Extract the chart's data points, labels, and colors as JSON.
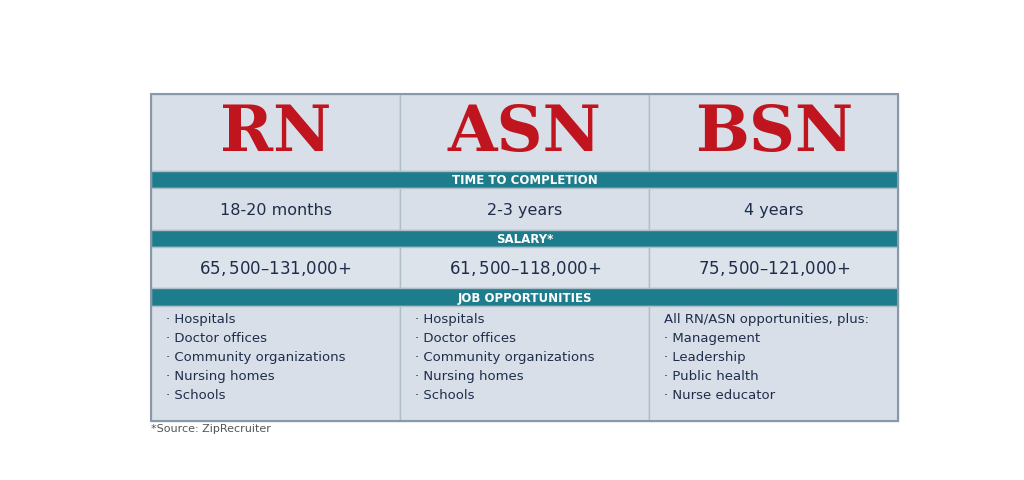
{
  "columns": [
    "RN",
    "ASN",
    "BSN"
  ],
  "header_color": "#c0151e",
  "header_bg": "#d8dfe8",
  "section_header_bg": "#1e7d8c",
  "section_header_text_color": "#ffffff",
  "cell_bg_light": "#dce3eb",
  "cell_bg_alt": "#ccd4de",
  "border_color": "#b0bec8",
  "section_headers": [
    "TIME TO COMPLETION",
    "SALARY*",
    "JOB OPPORTUNITIES"
  ],
  "time_to_completion": [
    "18-20 months",
    "2-3 years",
    "4 years"
  ],
  "salary": [
    "$65,500–$131,000+",
    "$61,500–$118,000+",
    "$75,500–$121,000+"
  ],
  "job_opportunities": [
    "· Hospitals\n· Doctor offices\n· Community organizations\n· Nursing homes\n· Schools",
    "· Hospitals\n· Doctor offices\n· Community organizations\n· Nursing homes\n· Schools",
    "All RN/ASN opportunities, plus:\n· Management\n· Leadership\n· Public health\n· Nurse educator"
  ],
  "footer_text": "*Source: ZipRecruiter",
  "background_color": "#ffffff",
  "text_color": "#1e2d4a",
  "outer_border_color": "#8899aa",
  "fig_width": 10.24,
  "fig_height": 4.81,
  "dpi": 100
}
